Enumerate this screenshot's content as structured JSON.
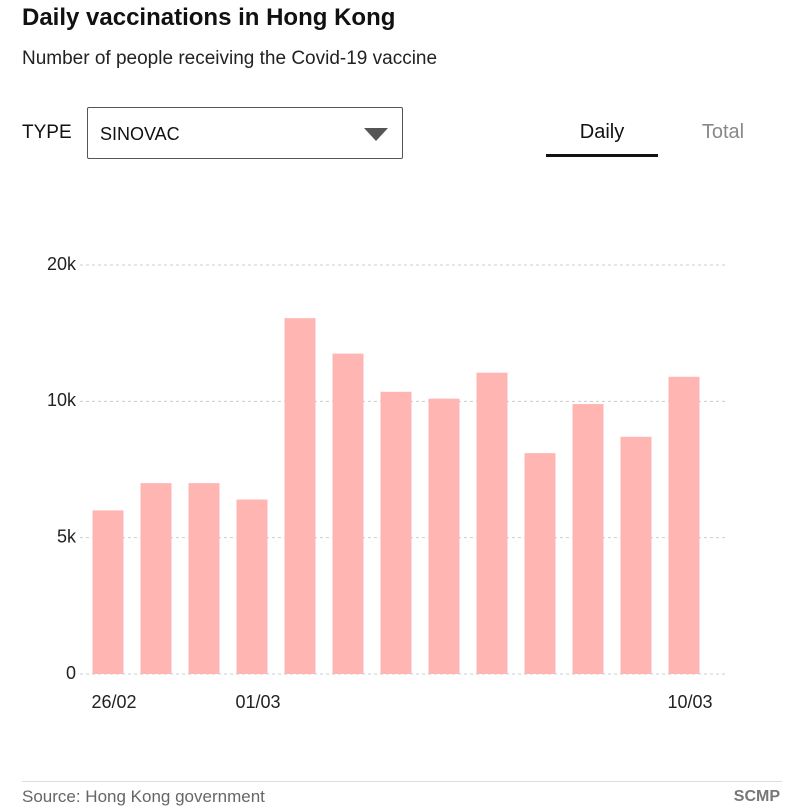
{
  "chart_data": {
    "type": "bar",
    "title": "Daily vaccinations in Hong Kong",
    "subtitle": "Number of people receiving the Covid-19 vaccine",
    "categories": [
      "26/02",
      null,
      null,
      "01/03",
      null,
      null,
      null,
      null,
      null,
      null,
      null,
      null,
      "10/03"
    ],
    "values": [
      6000,
      7000,
      7000,
      6400,
      16100,
      13500,
      10700,
      10200,
      12100,
      8100,
      9900,
      8700,
      11800
    ],
    "color": "#ffb5b1",
    "ylim": [
      0,
      20000
    ],
    "yticks": [
      0,
      {
        "value": 5000,
        "label": "5k"
      },
      {
        "value": 10000,
        "label": "10k"
      },
      {
        "value": 20000,
        "label": "20k"
      }
    ],
    "grid": true,
    "source": "Source: Hong Kong government",
    "brand": "SCMP"
  },
  "controls": {
    "type_label": "TYPE",
    "dropdown": "SINOVAC",
    "tabs": [
      "Daily",
      "Total"
    ],
    "active_tab": 0
  }
}
